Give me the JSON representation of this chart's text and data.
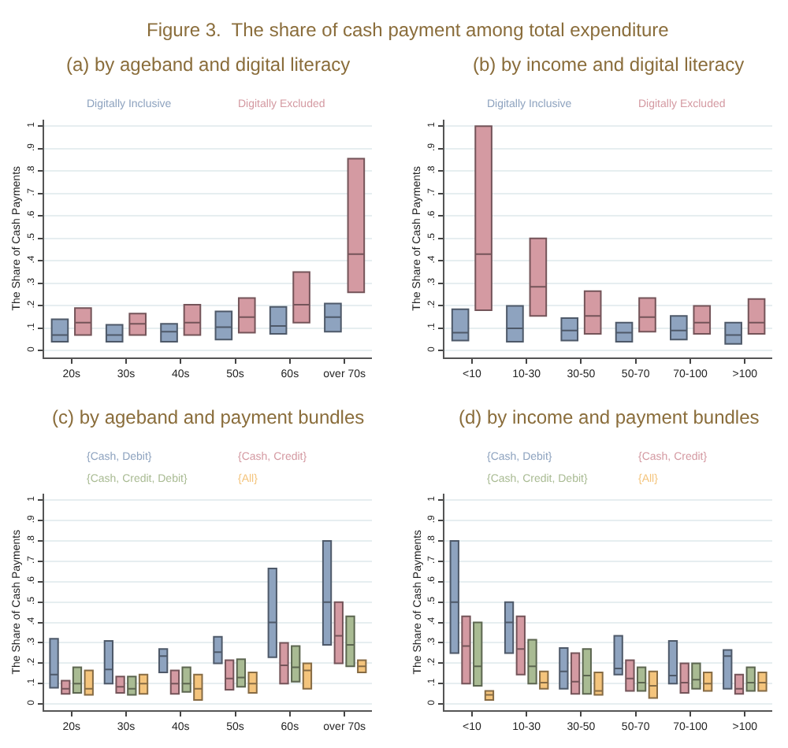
{
  "chart_data": [
    {
      "type": "box",
      "title": "(a) by ageband and digital literacy",
      "annotations": [
        "Figure 3.  The share of cash payment among total expenditure"
      ],
      "ylabel": "The Share of Cash Payments",
      "categories": [
        "20s",
        "30s",
        "40s",
        "50s",
        "60s",
        "over 70s"
      ],
      "ylim": [
        -0.03,
        1.03
      ],
      "yticks": [
        0,
        {
          "value": 0.1,
          "label": ".1"
        },
        {
          "value": 0.2,
          "label": ".2"
        },
        {
          "value": 0.3,
          "label": ".3"
        },
        {
          "value": 0.4,
          "label": ".4"
        },
        {
          "value": 0.5,
          "label": ".5"
        },
        {
          "value": 0.6,
          "label": ".6"
        },
        {
          "value": 0.7,
          "label": ".7"
        },
        {
          "value": 0.8,
          "label": ".8"
        },
        {
          "value": 0.9,
          "label": ".9"
        },
        1
      ],
      "grid": "y",
      "legend": "top",
      "series": [
        {
          "name": "Digitally Inclusive",
          "color": "#8ea3bf",
          "boxes": [
            {
              "q1": 0.04,
              "median": 0.07,
              "q3": 0.14
            },
            {
              "q1": 0.04,
              "median": 0.07,
              "q3": 0.115
            },
            {
              "q1": 0.04,
              "median": 0.085,
              "q3": 0.12
            },
            {
              "q1": 0.05,
              "median": 0.105,
              "q3": 0.175
            },
            {
              "q1": 0.075,
              "median": 0.11,
              "q3": 0.195
            },
            {
              "q1": 0.085,
              "median": 0.15,
              "q3": 0.21
            }
          ]
        },
        {
          "name": "Digitally Excluded",
          "color": "#d49aa2",
          "boxes": [
            {
              "q1": 0.07,
              "median": 0.125,
              "q3": 0.19
            },
            {
              "q1": 0.07,
              "median": 0.12,
              "q3": 0.165
            },
            {
              "q1": 0.07,
              "median": 0.125,
              "q3": 0.205
            },
            {
              "q1": 0.08,
              "median": 0.15,
              "q3": 0.235
            },
            {
              "q1": 0.125,
              "median": 0.205,
              "q3": 0.35
            },
            {
              "q1": 0.26,
              "median": 0.43,
              "q3": 0.855
            }
          ]
        }
      ]
    },
    {
      "type": "box",
      "title": "(b) by income and digital literacy",
      "ylabel": "The Share of Cash Payments",
      "categories": [
        "<10",
        "10-30",
        "30-50",
        "50-70",
        "70-100",
        ">100"
      ],
      "ylim": [
        -0.03,
        1.03
      ],
      "yticks": [
        0,
        {
          "value": 0.1,
          "label": ".1"
        },
        {
          "value": 0.2,
          "label": ".2"
        },
        {
          "value": 0.3,
          "label": ".3"
        },
        {
          "value": 0.4,
          "label": ".4"
        },
        {
          "value": 0.5,
          "label": ".5"
        },
        {
          "value": 0.6,
          "label": ".6"
        },
        {
          "value": 0.7,
          "label": ".7"
        },
        {
          "value": 0.8,
          "label": ".8"
        },
        {
          "value": 0.9,
          "label": ".9"
        },
        1
      ],
      "grid": "y",
      "legend": "top",
      "series": [
        {
          "name": "Digitally Inclusive",
          "color": "#8ea3bf",
          "boxes": [
            {
              "q1": 0.045,
              "median": 0.08,
              "q3": 0.185
            },
            {
              "q1": 0.04,
              "median": 0.1,
              "q3": 0.2
            },
            {
              "q1": 0.045,
              "median": 0.09,
              "q3": 0.145
            },
            {
              "q1": 0.04,
              "median": 0.08,
              "q3": 0.125
            },
            {
              "q1": 0.05,
              "median": 0.09,
              "q3": 0.155
            },
            {
              "q1": 0.03,
              "median": 0.07,
              "q3": 0.125
            }
          ]
        },
        {
          "name": "Digitally Excluded",
          "color": "#d49aa2",
          "boxes": [
            {
              "q1": 0.18,
              "median": 0.43,
              "q3": 1.0
            },
            {
              "q1": 0.155,
              "median": 0.285,
              "q3": 0.5
            },
            {
              "q1": 0.075,
              "median": 0.155,
              "q3": 0.265
            },
            {
              "q1": 0.085,
              "median": 0.15,
              "q3": 0.235
            },
            {
              "q1": 0.075,
              "median": 0.125,
              "q3": 0.2
            },
            {
              "q1": 0.075,
              "median": 0.125,
              "q3": 0.23
            }
          ]
        }
      ]
    },
    {
      "type": "box",
      "title": "(c) by ageband and payment bundles",
      "ylabel": "The Share of Cash Payments",
      "categories": [
        "20s",
        "30s",
        "40s",
        "50s",
        "60s",
        "over 70s"
      ],
      "ylim": [
        -0.03,
        1.03
      ],
      "yticks": [
        0,
        {
          "value": 0.1,
          "label": ".1"
        },
        {
          "value": 0.2,
          "label": ".2"
        },
        {
          "value": 0.3,
          "label": ".3"
        },
        {
          "value": 0.4,
          "label": ".4"
        },
        {
          "value": 0.5,
          "label": ".5"
        },
        {
          "value": 0.6,
          "label": ".6"
        },
        {
          "value": 0.7,
          "label": ".7"
        },
        {
          "value": 0.8,
          "label": ".8"
        },
        {
          "value": 0.9,
          "label": ".9"
        },
        1
      ],
      "grid": "y",
      "legend": "top",
      "series": [
        {
          "name": "{Cash, Debit}",
          "color": "#8ea3bf",
          "boxes": [
            {
              "q1": 0.08,
              "median": 0.145,
              "q3": 0.32
            },
            {
              "q1": 0.1,
              "median": 0.17,
              "q3": 0.31
            },
            {
              "q1": 0.155,
              "median": 0.235,
              "q3": 0.27
            },
            {
              "q1": 0.2,
              "median": 0.255,
              "q3": 0.33
            },
            {
              "q1": 0.23,
              "median": 0.4,
              "q3": 0.665
            },
            {
              "q1": 0.29,
              "median": 0.5,
              "q3": 0.8
            }
          ]
        },
        {
          "name": "{Cash, Credit}",
          "color": "#d49aa2",
          "boxes": [
            {
              "q1": 0.05,
              "median": 0.075,
              "q3": 0.115
            },
            {
              "q1": 0.055,
              "median": 0.085,
              "q3": 0.135
            },
            {
              "q1": 0.05,
              "median": 0.1,
              "q3": 0.165
            },
            {
              "q1": 0.07,
              "median": 0.125,
              "q3": 0.215
            },
            {
              "q1": 0.1,
              "median": 0.19,
              "q3": 0.3
            },
            {
              "q1": 0.2,
              "median": 0.335,
              "q3": 0.5
            }
          ]
        },
        {
          "name": "{Cash, Credit, Debit}",
          "color": "#a9bb93",
          "boxes": [
            {
              "q1": 0.055,
              "median": 0.1,
              "q3": 0.18
            },
            {
              "q1": 0.045,
              "median": 0.075,
              "q3": 0.135
            },
            {
              "q1": 0.06,
              "median": 0.1,
              "q3": 0.18
            },
            {
              "q1": 0.085,
              "median": 0.13,
              "q3": 0.22
            },
            {
              "q1": 0.11,
              "median": 0.18,
              "q3": 0.285
            },
            {
              "q1": 0.185,
              "median": 0.29,
              "q3": 0.43
            }
          ]
        },
        {
          "name": "{All}",
          "color": "#f4c47c",
          "boxes": [
            {
              "q1": 0.045,
              "median": 0.075,
              "q3": 0.165
            },
            {
              "q1": 0.05,
              "median": 0.1,
              "q3": 0.145
            },
            {
              "q1": 0.02,
              "median": 0.075,
              "q3": 0.145
            },
            {
              "q1": 0.055,
              "median": 0.1,
              "q3": 0.155
            },
            {
              "q1": 0.075,
              "median": 0.165,
              "q3": 0.2
            },
            {
              "q1": 0.155,
              "median": 0.185,
              "q3": 0.215
            }
          ]
        }
      ]
    },
    {
      "type": "box",
      "title": "(d) by income and payment bundles",
      "ylabel": "The Share of Cash Payments",
      "categories": [
        "<10",
        "10-30",
        "30-50",
        "50-70",
        "70-100",
        ">100"
      ],
      "ylim": [
        -0.03,
        1.03
      ],
      "yticks": [
        0,
        {
          "value": 0.1,
          "label": ".1"
        },
        {
          "value": 0.2,
          "label": ".2"
        },
        {
          "value": 0.3,
          "label": ".3"
        },
        {
          "value": 0.4,
          "label": ".4"
        },
        {
          "value": 0.5,
          "label": ".5"
        },
        {
          "value": 0.6,
          "label": ".6"
        },
        {
          "value": 0.7,
          "label": ".7"
        },
        {
          "value": 0.8,
          "label": ".8"
        },
        {
          "value": 0.9,
          "label": ".9"
        },
        1
      ],
      "grid": "y",
      "legend": "top",
      "series": [
        {
          "name": "{Cash, Debit}",
          "color": "#8ea3bf",
          "boxes": [
            {
              "q1": 0.25,
              "median": 0.5,
              "q3": 0.8
            },
            {
              "q1": 0.25,
              "median": 0.4,
              "q3": 0.5
            },
            {
              "q1": 0.075,
              "median": 0.16,
              "q3": 0.275
            },
            {
              "q1": 0.145,
              "median": 0.175,
              "q3": 0.335
            },
            {
              "q1": 0.1,
              "median": 0.14,
              "q3": 0.31
            },
            {
              "q1": 0.075,
              "median": 0.235,
              "q3": 0.265
            }
          ]
        },
        {
          "name": "{Cash, Credit}",
          "color": "#d49aa2",
          "boxes": [
            {
              "q1": 0.1,
              "median": 0.285,
              "q3": 0.43
            },
            {
              "q1": 0.145,
              "median": 0.27,
              "q3": 0.43
            },
            {
              "q1": 0.05,
              "median": 0.11,
              "q3": 0.25
            },
            {
              "q1": 0.065,
              "median": 0.125,
              "q3": 0.215
            },
            {
              "q1": 0.055,
              "median": 0.105,
              "q3": 0.2
            },
            {
              "q1": 0.05,
              "median": 0.075,
              "q3": 0.145
            }
          ]
        },
        {
          "name": "{Cash, Credit, Debit}",
          "color": "#a9bb93",
          "boxes": [
            {
              "q1": 0.09,
              "median": 0.185,
              "q3": 0.4
            },
            {
              "q1": 0.1,
              "median": 0.185,
              "q3": 0.315
            },
            {
              "q1": 0.05,
              "median": 0.14,
              "q3": 0.27
            },
            {
              "q1": 0.065,
              "median": 0.105,
              "q3": 0.18
            },
            {
              "q1": 0.075,
              "median": 0.12,
              "q3": 0.2
            },
            {
              "q1": 0.065,
              "median": 0.105,
              "q3": 0.18
            }
          ]
        },
        {
          "name": "{All}",
          "color": "#f4c47c",
          "boxes": [
            {
              "q1": 0.02,
              "median": 0.045,
              "q3": 0.065
            },
            {
              "q1": 0.075,
              "median": 0.105,
              "q3": 0.16
            },
            {
              "q1": 0.045,
              "median": 0.065,
              "q3": 0.155
            },
            {
              "q1": 0.03,
              "median": 0.09,
              "q3": 0.16
            },
            {
              "q1": 0.065,
              "median": 0.1,
              "q3": 0.155
            },
            {
              "q1": 0.065,
              "median": 0.105,
              "q3": 0.155
            }
          ]
        }
      ]
    }
  ]
}
